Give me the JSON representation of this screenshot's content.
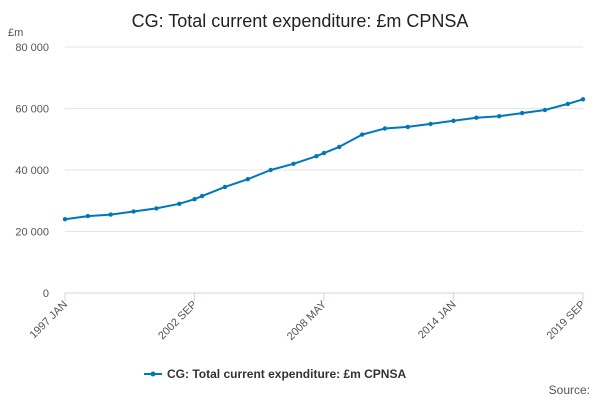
{
  "chart_data": {
    "type": "line",
    "title": "CG: Total current expenditure: £m CPNSA",
    "ylabel": "£m",
    "xlabel": "",
    "ylim": [
      0,
      80000
    ],
    "yticks": [
      0,
      20000,
      40000,
      60000,
      80000
    ],
    "ytick_labels": [
      "0",
      "20 000",
      "40 000",
      "60 000",
      "80 000"
    ],
    "xlim": [
      "1997 JAN",
      "2019 SEP"
    ],
    "xticks": [
      "1997 JAN",
      "2002 SEP",
      "2008 MAY",
      "2014 JAN",
      "2019 SEP"
    ],
    "x": [
      "1997 JAN",
      "1998 JAN",
      "1999 JAN",
      "2000 JAN",
      "2001 JAN",
      "2002 JAN",
      "2002 SEP",
      "2003 JAN",
      "2004 JAN",
      "2005 JAN",
      "2006 JAN",
      "2007 JAN",
      "2008 JAN",
      "2008 MAY",
      "2009 JAN",
      "2010 JAN",
      "2011 JAN",
      "2012 JAN",
      "2013 JAN",
      "2014 JAN",
      "2015 JAN",
      "2016 JAN",
      "2017 JAN",
      "2018 JAN",
      "2019 JAN",
      "2019 SEP"
    ],
    "series": [
      {
        "name": "CG: Total current expenditure: £m CPNSA",
        "color": "#0077bb",
        "values": [
          24000,
          25000,
          25500,
          26500,
          27500,
          29000,
          30500,
          31500,
          34500,
          37000,
          40000,
          42000,
          44500,
          45500,
          47500,
          51500,
          53500,
          54000,
          55000,
          56000,
          57000,
          57500,
          58500,
          59500,
          61500,
          63000
        ]
      }
    ]
  },
  "legend": {
    "label": "CG: Total current expenditure: £m CPNSA",
    "position": "bottom-center"
  },
  "source": {
    "label": "Source:"
  }
}
